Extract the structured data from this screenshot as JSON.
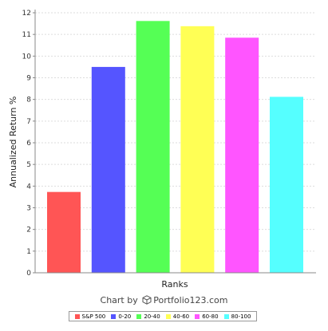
{
  "chart_data": {
    "type": "bar",
    "title": "",
    "xlabel": "Ranks",
    "ylabel": "Annualized Return %",
    "ylim": [
      0,
      12
    ],
    "yticks": [
      "0",
      "1",
      "2",
      "3",
      "4",
      "5",
      "6",
      "7",
      "8",
      "9",
      "10",
      "11",
      "12"
    ],
    "grid": true,
    "legend_position": "bottom",
    "categories": [
      "S&P 500",
      "0-20",
      "20-40",
      "40-60",
      "60-80",
      "80-100"
    ],
    "values": [
      3.73,
      9.5,
      11.62,
      11.38,
      10.85,
      8.12
    ],
    "colors": [
      "#ff5555",
      "#5555ff",
      "#55ff55",
      "#ffff55",
      "#ff55ff",
      "#55ffff"
    ]
  },
  "credit": {
    "prefix": "Chart by",
    "brand": "Portfolio123.com",
    "icon": "cube-logo-icon"
  }
}
